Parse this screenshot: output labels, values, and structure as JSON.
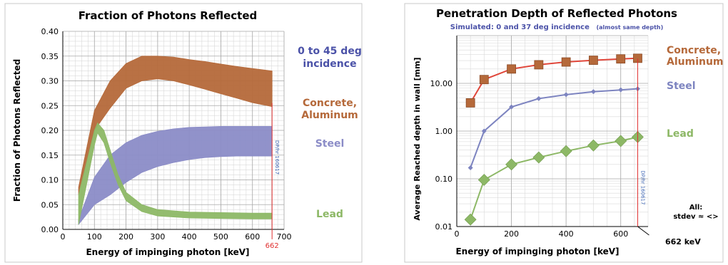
{
  "chart_data": [
    {
      "type": "area",
      "title": "Fraction of Photons Reflected",
      "xlabel": "Energy of impinging photon  [keV]",
      "ylabel": "Fraction of Photons Reflected",
      "xlim": [
        0,
        700
      ],
      "ylim": [
        0,
        0.4
      ],
      "x_ticks": [
        0,
        100,
        200,
        300,
        400,
        500,
        600,
        700
      ],
      "x_tick_labels": [
        "0",
        "100",
        "200",
        "300",
        "400",
        "500",
        "600",
        "700"
      ],
      "y_ticks": [
        0,
        0.05,
        0.1,
        0.15,
        0.2,
        0.25,
        0.3,
        0.35,
        0.4
      ],
      "y_tick_labels": [
        "0.00",
        "0.05",
        "0.10",
        "0.15",
        "0.20",
        "0.25",
        "0.30",
        "0.35",
        "0.40"
      ],
      "grid": true,
      "annotations": {
        "incidence": "0 to 45 deg\nincidence",
        "marker_label": "662",
        "watermark": "DP/hr 160617"
      },
      "series": [
        {
          "name": "Concrete,\nAluminum",
          "color": "#b5693a",
          "x": [
            50,
            100,
            150,
            200,
            250,
            300,
            350,
            400,
            450,
            500,
            550,
            600,
            662
          ],
          "upper": [
            0.085,
            0.24,
            0.3,
            0.335,
            0.35,
            0.35,
            0.348,
            0.343,
            0.339,
            0.334,
            0.329,
            0.325,
            0.32
          ],
          "lower": [
            0.07,
            0.2,
            0.245,
            0.285,
            0.3,
            0.304,
            0.3,
            0.292,
            0.283,
            0.274,
            0.265,
            0.256,
            0.248
          ]
        },
        {
          "name": "Steel",
          "color": "#8b8cc7",
          "x": [
            50,
            100,
            150,
            200,
            250,
            300,
            350,
            400,
            450,
            500,
            550,
            600,
            662
          ],
          "upper": [
            0.02,
            0.105,
            0.15,
            0.175,
            0.19,
            0.198,
            0.203,
            0.206,
            0.207,
            0.208,
            0.208,
            0.208,
            0.208
          ],
          "lower": [
            0.01,
            0.05,
            0.07,
            0.095,
            0.115,
            0.127,
            0.135,
            0.141,
            0.145,
            0.147,
            0.148,
            0.148,
            0.148
          ]
        },
        {
          "name": "Lead",
          "color": "#8db866",
          "x": [
            50,
            100,
            110,
            130,
            150,
            175,
            200,
            250,
            300,
            400,
            500,
            600,
            662
          ],
          "upper": [
            0.07,
            0.2,
            0.215,
            0.2,
            0.16,
            0.11,
            0.075,
            0.05,
            0.04,
            0.035,
            0.034,
            0.033,
            0.033
          ],
          "lower": [
            0.01,
            0.17,
            0.195,
            0.175,
            0.135,
            0.09,
            0.058,
            0.036,
            0.027,
            0.023,
            0.022,
            0.021,
            0.021
          ]
        }
      ]
    },
    {
      "type": "line",
      "title": "Penetration Depth of Reflected Photons",
      "subtitle": "Simulated: 0 and 37 deg incidence",
      "subtitle_note": "(almost same depth)",
      "xlabel": "Energy of impinging photon  [keV]",
      "ylabel": "Average Reached depth in wall  [mm]",
      "xlim": [
        0,
        700
      ],
      "ylim": [
        0.01,
        100
      ],
      "y_scale": "log",
      "x_ticks": [
        0,
        200,
        400,
        600
      ],
      "x_tick_labels": [
        "0",
        "200",
        "400",
        "600"
      ],
      "y_ticks": [
        0.01,
        0.1,
        1,
        10
      ],
      "y_tick_labels": [
        "0.01",
        "0.10",
        "1.00",
        "10.00"
      ],
      "grid": true,
      "annotations": {
        "marker_label": "662 keV",
        "stdev_note": "All:\nstdev ≈ <>",
        "watermark": "DP/hr 160617"
      },
      "series": [
        {
          "name": "Concrete,\nAluminum",
          "color": "#b5693a",
          "line_color": "#e0463a",
          "marker": "square",
          "x": [
            50,
            100,
            200,
            300,
            400,
            500,
            600,
            662
          ],
          "y": [
            3.9,
            12,
            20,
            24.5,
            28,
            30.5,
            32.5,
            33.5
          ]
        },
        {
          "name": "Steel",
          "color": "#7d84c0",
          "line_color": "#7d84c0",
          "marker": "diamond-small",
          "x": [
            50,
            100,
            200,
            300,
            400,
            500,
            600,
            662
          ],
          "y": [
            0.17,
            1.0,
            3.2,
            4.8,
            5.8,
            6.7,
            7.3,
            7.7
          ]
        },
        {
          "name": "Lead",
          "color": "#8db866",
          "line_color": "#8db866",
          "marker": "diamond",
          "x": [
            50,
            100,
            200,
            300,
            400,
            500,
            600,
            662
          ],
          "y": [
            0.014,
            0.095,
            0.2,
            0.28,
            0.38,
            0.5,
            0.62,
            0.75
          ]
        }
      ]
    }
  ]
}
